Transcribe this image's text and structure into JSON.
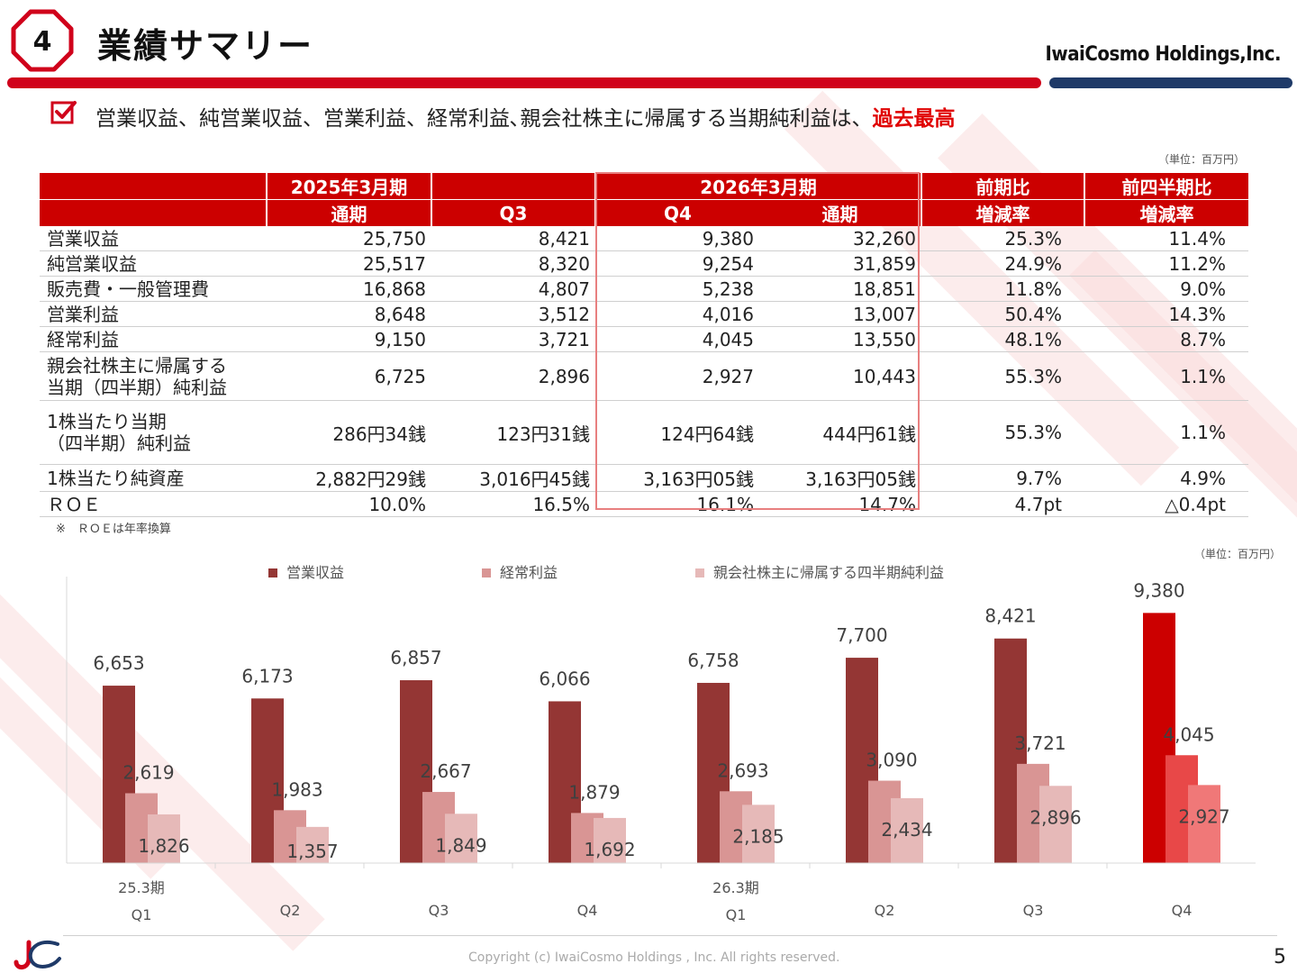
{
  "header": {
    "slide_badge": "4",
    "title": "業績サマリー",
    "company": "IwaiCosmo Holdings,Inc."
  },
  "summary": {
    "text": "営業収益、純営業収益、営業利益、経常利益､親会社株主に帰属する当期純利益は、",
    "highlight": "過去最高"
  },
  "table": {
    "unit": "（単位：百万円）",
    "group_headers": [
      "2025年3月期",
      "",
      "2026年3月期",
      "前期比",
      "前四半期比"
    ],
    "sub_headers": [
      "通期",
      "Q3",
      "Q4",
      "通期",
      "増減率",
      "増減率"
    ],
    "rows": [
      {
        "label": "営業収益",
        "cells": [
          "25,750",
          "8,421",
          "9,380",
          "32,260",
          "25.3%",
          "11.4%"
        ]
      },
      {
        "label": "純営業収益",
        "cells": [
          "25,517",
          "8,320",
          "9,254",
          "31,859",
          "24.9%",
          "11.2%"
        ]
      },
      {
        "label": "販売費・一般管理費",
        "cells": [
          "16,868",
          "4,807",
          "5,238",
          "18,851",
          "11.8%",
          "9.0%"
        ]
      },
      {
        "label": "営業利益",
        "cells": [
          "8,648",
          "3,512",
          "4,016",
          "13,007",
          "50.4%",
          "14.3%"
        ]
      },
      {
        "label": "経常利益",
        "cells": [
          "9,150",
          "3,721",
          "4,045",
          "13,550",
          "48.1%",
          "8.7%"
        ]
      },
      {
        "label": "親会社株主に帰属する\n当期（四半期）純利益",
        "cells": [
          "6,725",
          "2,896",
          "2,927",
          "10,443",
          "55.3%",
          "1.1%"
        ]
      },
      {
        "label": "1株当たり当期\n（四半期）純利益",
        "cells": [
          "286円34銭",
          "123円31銭",
          "124円64銭",
          "444円61銭",
          "55.3%",
          "1.1%"
        ]
      },
      {
        "label": "1株当たり純資産",
        "cells": [
          "2,882円29銭",
          "3,016円45銭",
          "3,163円05銭",
          "3,163円05銭",
          "9.7%",
          "4.9%"
        ]
      },
      {
        "label": "ＲＯＥ",
        "cells": [
          "10.0%",
          "16.5%",
          "16.1%",
          "14.7%",
          "4.7pt",
          "△0.4pt"
        ]
      }
    ],
    "note": "※　ＲＯＥは年率換算"
  },
  "chart_data": {
    "type": "bar",
    "unit": "（単位：百万円）",
    "categories": [
      "Q1",
      "Q2",
      "Q3",
      "Q4",
      "Q1",
      "Q2",
      "Q3",
      "Q4"
    ],
    "period_labels": [
      "25.3期",
      "",
      "",
      "",
      "26.3期",
      "",
      "",
      ""
    ],
    "series": [
      {
        "name": "営業収益",
        "values": [
          6653,
          6173,
          6857,
          6066,
          6758,
          7700,
          8421,
          9380
        ],
        "color": "#943634"
      },
      {
        "name": "経常利益",
        "values": [
          2619,
          1983,
          2667,
          1879,
          2693,
          3090,
          3721,
          4045
        ],
        "color": "#d99594"
      },
      {
        "name": "親会社株主に帰属する四半期純利益",
        "values": [
          1826,
          1357,
          1849,
          1692,
          2185,
          2434,
          2896,
          2927
        ],
        "color": "#e6b9b8"
      }
    ],
    "highlight_colors": [
      "#cc0000",
      "#e84848",
      "#f07878"
    ],
    "ylim": [
      0,
      10000
    ],
    "grid": false,
    "legend": "top"
  },
  "footer": {
    "copyright": "Copyright (c) IwaiCosmo Holdings , Inc. All rights reserved.",
    "page": "5"
  }
}
